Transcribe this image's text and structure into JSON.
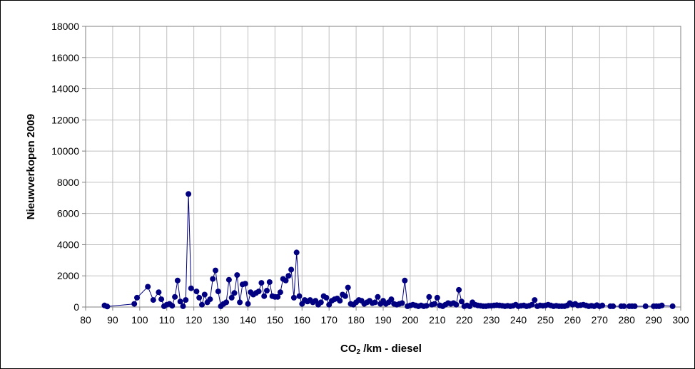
{
  "chart_data": {
    "type": "line",
    "title": "",
    "xlabel": {
      "prefix": "CO",
      "subscript": "2",
      "suffix": " /km  - diesel"
    },
    "ylabel": "Nieuwverkopen 2009",
    "xlim": [
      80,
      300
    ],
    "ylim": [
      0,
      18000
    ],
    "xticks": [
      80,
      90,
      100,
      110,
      120,
      130,
      140,
      150,
      160,
      170,
      180,
      190,
      200,
      210,
      220,
      230,
      240,
      250,
      260,
      270,
      280,
      290,
      300
    ],
    "yticks": [
      0,
      2000,
      4000,
      6000,
      8000,
      10000,
      12000,
      14000,
      16000,
      18000
    ],
    "grid": true,
    "legend": "none",
    "series_color": "#000080",
    "marker": "circle",
    "series": [
      {
        "points": [
          [
            87,
            100
          ],
          [
            88,
            30
          ],
          [
            98,
            200
          ],
          [
            99,
            600
          ],
          [
            103,
            1300
          ],
          [
            105,
            450
          ],
          [
            107,
            950
          ],
          [
            108,
            500
          ],
          [
            109,
            50
          ],
          [
            110,
            150
          ],
          [
            111,
            200
          ],
          [
            112,
            80
          ],
          [
            113,
            650
          ],
          [
            114,
            1700
          ],
          [
            115,
            350
          ],
          [
            116,
            50
          ],
          [
            117,
            450
          ],
          [
            118,
            7250
          ],
          [
            119,
            1200
          ],
          [
            121,
            1000
          ],
          [
            122,
            600
          ],
          [
            123,
            150
          ],
          [
            124,
            800
          ],
          [
            125,
            300
          ],
          [
            126,
            500
          ],
          [
            127,
            1800
          ],
          [
            128,
            2350
          ],
          [
            129,
            1000
          ],
          [
            130,
            50
          ],
          [
            131,
            200
          ],
          [
            132,
            300
          ],
          [
            133,
            1750
          ],
          [
            134,
            600
          ],
          [
            135,
            900
          ],
          [
            136,
            2050
          ],
          [
            137,
            300
          ],
          [
            138,
            1450
          ],
          [
            139,
            1500
          ],
          [
            140,
            200
          ],
          [
            141,
            950
          ],
          [
            142,
            800
          ],
          [
            143,
            900
          ],
          [
            144,
            1000
          ],
          [
            145,
            1550
          ],
          [
            146,
            700
          ],
          [
            147,
            1050
          ],
          [
            148,
            1600
          ],
          [
            149,
            700
          ],
          [
            150,
            650
          ],
          [
            151,
            650
          ],
          [
            152,
            950
          ],
          [
            153,
            1800
          ],
          [
            154,
            1700
          ],
          [
            155,
            2000
          ],
          [
            156,
            2400
          ],
          [
            157,
            600
          ],
          [
            158,
            3500
          ],
          [
            159,
            700
          ],
          [
            160,
            200
          ],
          [
            161,
            450
          ],
          [
            162,
            350
          ],
          [
            163,
            450
          ],
          [
            164,
            300
          ],
          [
            165,
            400
          ],
          [
            166,
            150
          ],
          [
            167,
            300
          ],
          [
            168,
            700
          ],
          [
            169,
            600
          ],
          [
            170,
            150
          ],
          [
            171,
            400
          ],
          [
            172,
            500
          ],
          [
            173,
            550
          ],
          [
            174,
            400
          ],
          [
            175,
            800
          ],
          [
            176,
            700
          ],
          [
            177,
            1250
          ],
          [
            178,
            200
          ],
          [
            179,
            150
          ],
          [
            180,
            300
          ],
          [
            181,
            450
          ],
          [
            182,
            400
          ],
          [
            183,
            200
          ],
          [
            184,
            300
          ],
          [
            185,
            400
          ],
          [
            186,
            250
          ],
          [
            187,
            300
          ],
          [
            188,
            650
          ],
          [
            189,
            200
          ],
          [
            190,
            400
          ],
          [
            191,
            200
          ],
          [
            192,
            300
          ],
          [
            193,
            500
          ],
          [
            194,
            200
          ],
          [
            195,
            150
          ],
          [
            196,
            200
          ],
          [
            197,
            250
          ],
          [
            198,
            1700
          ],
          [
            199,
            50
          ],
          [
            200,
            100
          ],
          [
            201,
            150
          ],
          [
            202,
            100
          ],
          [
            203,
            50
          ],
          [
            204,
            100
          ],
          [
            205,
            50
          ],
          [
            206,
            80
          ],
          [
            207,
            650
          ],
          [
            208,
            150
          ],
          [
            209,
            200
          ],
          [
            210,
            600
          ],
          [
            211,
            100
          ],
          [
            212,
            50
          ],
          [
            213,
            150
          ],
          [
            214,
            250
          ],
          [
            215,
            200
          ],
          [
            216,
            250
          ],
          [
            217,
            150
          ],
          [
            218,
            1100
          ],
          [
            219,
            350
          ],
          [
            220,
            50
          ],
          [
            221,
            100
          ],
          [
            222,
            50
          ],
          [
            223,
            300
          ],
          [
            224,
            150
          ],
          [
            225,
            100
          ],
          [
            226,
            80
          ],
          [
            227,
            50
          ],
          [
            228,
            50
          ],
          [
            229,
            80
          ],
          [
            230,
            80
          ],
          [
            231,
            100
          ],
          [
            232,
            120
          ],
          [
            233,
            100
          ],
          [
            234,
            80
          ],
          [
            235,
            50
          ],
          [
            236,
            80
          ],
          [
            237,
            50
          ],
          [
            238,
            80
          ],
          [
            239,
            150
          ],
          [
            240,
            50
          ],
          [
            241,
            80
          ],
          [
            242,
            100
          ],
          [
            243,
            50
          ],
          [
            244,
            80
          ],
          [
            245,
            150
          ],
          [
            246,
            450
          ],
          [
            247,
            50
          ],
          [
            248,
            100
          ],
          [
            249,
            80
          ],
          [
            250,
            100
          ],
          [
            251,
            150
          ],
          [
            252,
            100
          ],
          [
            253,
            50
          ],
          [
            254,
            80
          ],
          [
            255,
            50
          ],
          [
            256,
            50
          ],
          [
            257,
            50
          ],
          [
            258,
            100
          ],
          [
            259,
            250
          ],
          [
            260,
            150
          ],
          [
            261,
            200
          ],
          [
            262,
            100
          ],
          [
            263,
            120
          ],
          [
            264,
            150
          ],
          [
            265,
            100
          ],
          [
            266,
            50
          ],
          [
            267,
            80
          ],
          [
            268,
            50
          ],
          [
            269,
            120
          ],
          [
            270,
            50
          ],
          [
            271,
            100
          ],
          [
            274,
            50
          ],
          [
            275,
            50
          ],
          [
            278,
            50
          ],
          [
            279,
            50
          ],
          [
            281,
            50
          ],
          [
            282,
            50
          ],
          [
            283,
            50
          ],
          [
            287,
            50
          ],
          [
            290,
            50
          ],
          [
            291,
            50
          ],
          [
            292,
            50
          ],
          [
            293,
            100
          ],
          [
            297,
            50
          ]
        ]
      }
    ]
  }
}
